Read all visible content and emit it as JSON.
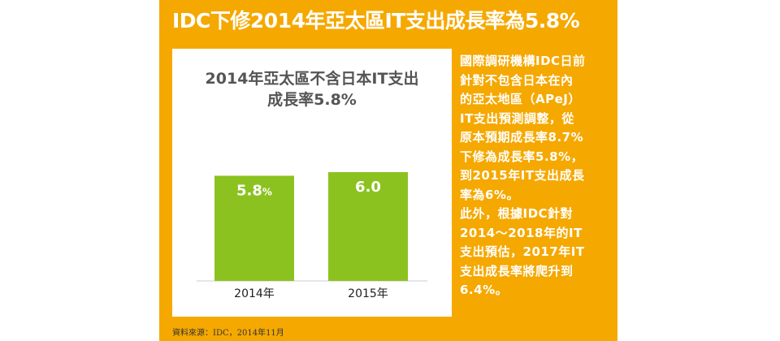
{
  "headline": "IDC下修2014年亞太區IT支出成長率為5.8%",
  "chart_data": {
    "type": "bar",
    "title_lines": [
      "2014年亞太區不含日本IT支出",
      "成長率5.8%"
    ],
    "categories": [
      "2014年",
      "2015年"
    ],
    "values": [
      5.8,
      6.0
    ],
    "data_labels": [
      "5.8",
      "6.0"
    ],
    "data_label_units": [
      "%",
      ""
    ],
    "xlabel": "",
    "ylabel": "",
    "ylim": [
      0,
      6.0
    ],
    "grid": false,
    "bar_color": "#8cc21f"
  },
  "side_text": [
    "國際調研機構IDC日前",
    "針對不包含日本在內",
    "的亞太地區（APeJ）",
    "IT支出預測調整，從",
    "原本預期成長率8.7%",
    "下修為成長率5.8%，",
    "到2015年IT支出成長",
    "率為6%。",
    "此外，根據IDC針對",
    "2014～2018年的IT",
    "支出預估，2017年IT",
    "支出成長率將爬升到",
    "6.4%。"
  ],
  "source": "資料來源：IDC，2014年11月",
  "colors": {
    "background": "#f5a800",
    "chart_bg": "#ffffff",
    "bar": "#8cc21f"
  }
}
